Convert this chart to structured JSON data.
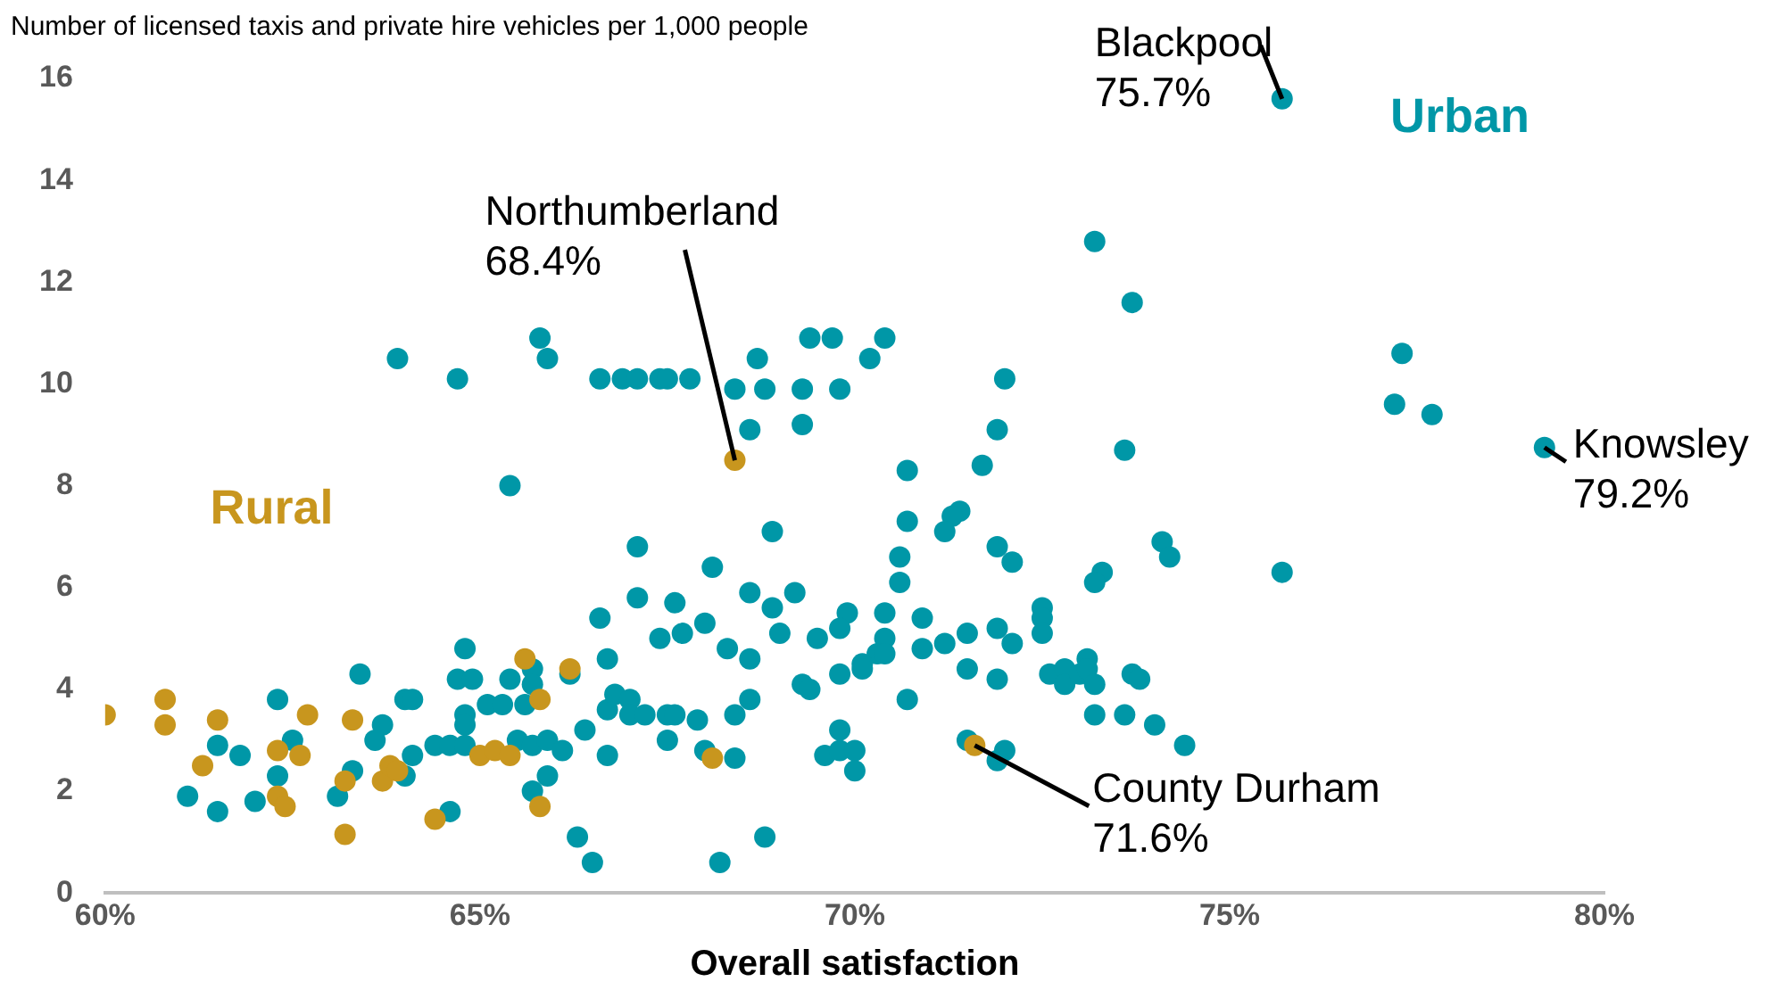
{
  "chart_data": {
    "type": "scatter",
    "ylabel": "Number of licensed taxis and private hire vehicles per 1,000 people",
    "xlabel": "Overall satisfaction",
    "marker": "circle",
    "xlim": [
      60,
      80
    ],
    "xticks": [
      {
        "value": 60,
        "label": "60%"
      },
      {
        "value": 65,
        "label": "65%"
      },
      {
        "value": 70,
        "label": "70%"
      },
      {
        "value": 75,
        "label": "75%"
      },
      {
        "value": 80,
        "label": "80%"
      }
    ],
    "ylim": [
      0,
      16
    ],
    "yticks": [
      0,
      2,
      4,
      6,
      8,
      10,
      12,
      14,
      16
    ],
    "series": [
      {
        "name": "Rural",
        "color": "#c8961e",
        "x": [
          60.0,
          60.8,
          60.8,
          61.5,
          61.3,
          62.3,
          62.4,
          62.3,
          62.6,
          62.7,
          63.3,
          63.2,
          63.2,
          63.7,
          63.8,
          63.9,
          64.4,
          65.0,
          65.2,
          65.4,
          65.6,
          65.8,
          65.8,
          66.2,
          68.1,
          68.4,
          71.6
        ],
        "values": [
          3.5,
          3.8,
          3.3,
          3.4,
          2.5,
          1.9,
          1.7,
          2.8,
          2.7,
          3.5,
          3.4,
          2.2,
          1.15,
          2.2,
          2.5,
          2.4,
          1.45,
          2.7,
          2.8,
          2.7,
          4.6,
          3.8,
          1.7,
          4.4,
          2.65,
          8.5,
          2.9
        ]
      },
      {
        "name": "Urban",
        "color": "#0097a7",
        "x": [
          66.6,
          64.8,
          63.4,
          62.3,
          64.0,
          64.1,
          64.7,
          64.9,
          65.4,
          65.7,
          65.7,
          65.1,
          65.3,
          65.6,
          66.2,
          66.7,
          66.7,
          64.8,
          64.8,
          63.7,
          63.6,
          62.5,
          61.5,
          61.8,
          62.3,
          61.1,
          61.5,
          62.0,
          63.1,
          63.3,
          64.0,
          64.1,
          64.4,
          64.6,
          64.8,
          65.5,
          65.7,
          65.9,
          66.1,
          66.4,
          66.7,
          65.9,
          65.7,
          64.6,
          66.3,
          66.5,
          70.7,
          71.7,
          70.7,
          71.4,
          71.3,
          71.2,
          71.9,
          68.9,
          67.1,
          68.1,
          70.6,
          70.6,
          67.1,
          67.6,
          68.6,
          69.2,
          67.4,
          67.7,
          68.0,
          68.9,
          69.0,
          68.3,
          68.6,
          69.5,
          69.9,
          69.8,
          70.4,
          70.4,
          70.3,
          70.4,
          70.1,
          70.1,
          69.8,
          70.9,
          70.9,
          71.2,
          71.5,
          71.9,
          71.5,
          71.9,
          70.7,
          66.8,
          67.0,
          67.0,
          67.2,
          67.5,
          67.6,
          67.9,
          68.4,
          68.6,
          67.5,
          68.0,
          68.4,
          69.3,
          69.4,
          69.8,
          69.6,
          69.8,
          70.0,
          70.0,
          68.8,
          68.2,
          73.7,
          69.7,
          70.4,
          70.2,
          69.8,
          72.0,
          71.9,
          73.6,
          72.1,
          74.1,
          74.2,
          73.3,
          73.2,
          75.7,
          72.1,
          72.5,
          72.5,
          72.5,
          72.6,
          72.8,
          72.8,
          73.0,
          73.1,
          73.1,
          73.2,
          73.7,
          73.8,
          73.2,
          73.6,
          74.0,
          74.4,
          71.5,
          72.0,
          71.9,
          63.9,
          64.7,
          65.8,
          65.9,
          66.6,
          66.9,
          67.1,
          67.4,
          67.5,
          67.8,
          68.4,
          68.7,
          68.8,
          69.3,
          69.4,
          68.6,
          69.3,
          65.4,
          75.7,
          73.2,
          77.3,
          77.2,
          77.7,
          79.2
        ],
        "values": [
          5.4,
          4.8,
          4.3,
          3.8,
          3.8,
          3.8,
          4.2,
          4.2,
          4.2,
          4.4,
          4.1,
          3.7,
          3.7,
          3.7,
          4.3,
          4.6,
          3.6,
          3.5,
          3.3,
          3.3,
          3.0,
          3.0,
          2.9,
          2.7,
          2.3,
          1.9,
          1.6,
          1.8,
          1.9,
          2.4,
          2.3,
          2.7,
          2.9,
          2.9,
          2.9,
          3.0,
          2.9,
          3.0,
          2.8,
          3.2,
          2.7,
          2.3,
          2.0,
          1.6,
          1.1,
          0.6,
          8.3,
          8.4,
          7.3,
          7.5,
          7.4,
          7.1,
          6.8,
          7.1,
          6.8,
          6.4,
          6.6,
          6.1,
          5.8,
          5.7,
          5.9,
          5.9,
          5.0,
          5.1,
          5.3,
          5.6,
          5.1,
          4.8,
          4.6,
          5.0,
          5.5,
          5.2,
          5.5,
          5.0,
          4.7,
          4.7,
          4.5,
          4.4,
          4.3,
          5.4,
          4.8,
          4.9,
          5.1,
          5.2,
          4.4,
          4.2,
          3.8,
          3.9,
          3.8,
          3.5,
          3.5,
          3.5,
          3.5,
          3.4,
          3.5,
          3.8,
          3.0,
          2.8,
          2.65,
          4.1,
          4.0,
          3.2,
          2.7,
          2.8,
          2.8,
          2.4,
          1.1,
          0.6,
          11.6,
          10.9,
          10.9,
          10.5,
          9.9,
          10.1,
          9.1,
          8.7,
          6.5,
          6.9,
          6.6,
          6.3,
          6.1,
          6.3,
          4.9,
          5.6,
          5.4,
          5.1,
          4.3,
          4.4,
          4.1,
          4.3,
          4.6,
          4.4,
          4.1,
          4.3,
          4.2,
          3.5,
          3.5,
          3.3,
          2.9,
          3.0,
          2.8,
          2.6,
          10.5,
          10.1,
          10.9,
          10.5,
          10.1,
          10.1,
          10.1,
          10.1,
          10.1,
          10.1,
          9.9,
          10.5,
          9.9,
          9.9,
          10.9,
          9.1,
          9.2,
          8.0,
          15.6,
          12.8,
          10.6,
          9.6,
          9.4,
          8.75
        ]
      }
    ],
    "annotations": [
      {
        "text": "Blackpool\n75.7%",
        "x": 75.7,
        "y": 15.6
      },
      {
        "text": "Northumberland\n68.4%",
        "x": 68.4,
        "y": 8.5
      },
      {
        "text": "Knowsley\n79.2%",
        "x": 79.2,
        "y": 8.75
      },
      {
        "text": "County Durham\n71.6%",
        "x": 71.6,
        "y": 2.9
      }
    ]
  }
}
